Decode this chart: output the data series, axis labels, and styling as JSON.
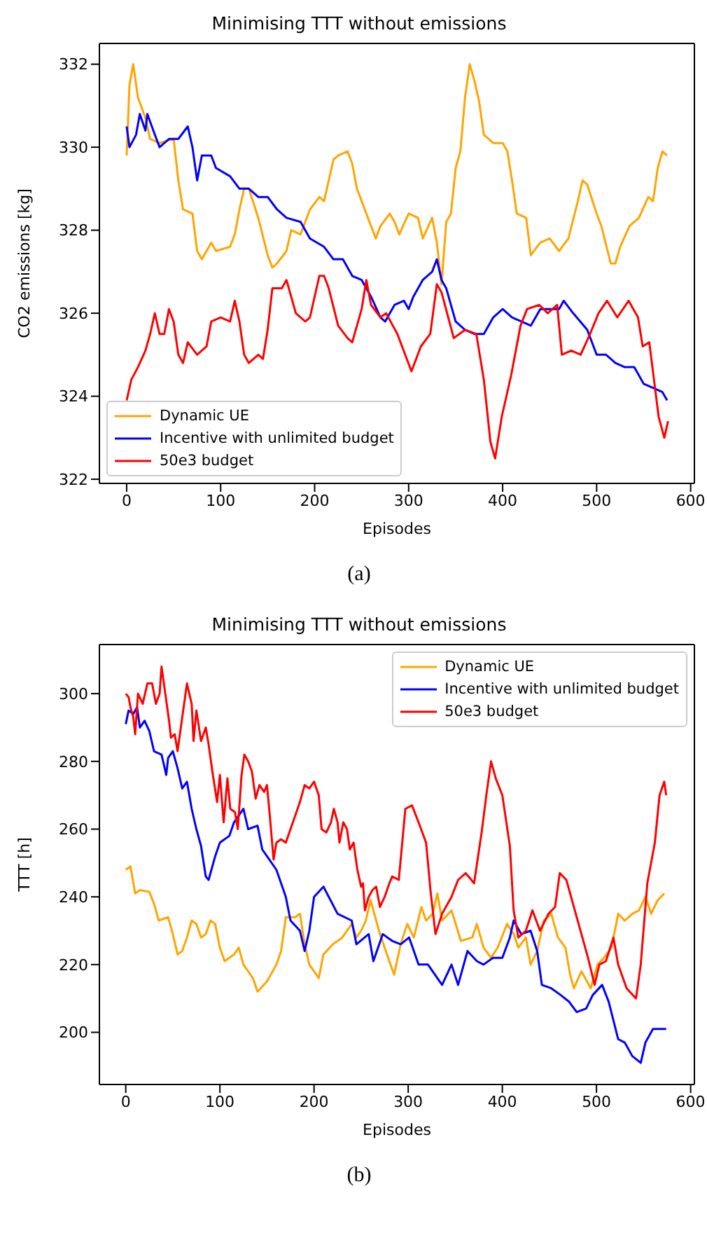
{
  "chart_data": [
    {
      "type": "line",
      "title": "Minimising TTT without emissions",
      "xlabel": "Episodes",
      "ylabel": "CO2 emissions [kg]",
      "xlim": [
        -29,
        604
      ],
      "xticks": [
        0,
        100,
        200,
        300,
        400,
        500,
        600
      ],
      "ylim": [
        321.9,
        332.5
      ],
      "yticks": [
        322,
        324,
        326,
        328,
        330,
        332
      ],
      "legend": "bottom left",
      "marker": "none",
      "line_style": "solid",
      "annotations": [
        "(a)"
      ],
      "series": [
        {
          "name": "Dynamic UE",
          "color": "#ffa500",
          "x": [
            0,
            3,
            7,
            12,
            20,
            25,
            35,
            50,
            55,
            60,
            70,
            75,
            80,
            90,
            95,
            110,
            115,
            120,
            125,
            130,
            140,
            150,
            155,
            160,
            170,
            175,
            185,
            195,
            205,
            210,
            220,
            225,
            235,
            240,
            245,
            255,
            265,
            270,
            280,
            285,
            290,
            300,
            310,
            315,
            325,
            330,
            335,
            340,
            345,
            350,
            355,
            360,
            365,
            370,
            375,
            380,
            390,
            400,
            405,
            410,
            415,
            425,
            430,
            440,
            450,
            460,
            470,
            480,
            485,
            490,
            500,
            505,
            515,
            520,
            525,
            535,
            545,
            555,
            560,
            565,
            570,
            575
          ],
          "values": [
            329.8,
            331.5,
            332,
            331.2,
            330.7,
            330.2,
            330.1,
            330.2,
            329.2,
            328.5,
            328.4,
            327.5,
            327.3,
            327.7,
            327.5,
            327.6,
            327.9,
            328.5,
            329,
            329,
            328.3,
            327.4,
            327.1,
            327.2,
            327.5,
            328,
            327.9,
            328.5,
            328.8,
            328.7,
            329.7,
            329.8,
            329.9,
            329.6,
            329,
            328.4,
            327.8,
            328.1,
            328.4,
            328.2,
            327.9,
            328.4,
            328.3,
            327.8,
            328.3,
            327.7,
            326.7,
            328.2,
            328.4,
            329.5,
            329.9,
            331.2,
            332,
            331.6,
            331.1,
            330.3,
            330.1,
            330.1,
            329.9,
            329.2,
            328.4,
            328.3,
            327.4,
            327.7,
            327.8,
            327.5,
            327.8,
            328.7,
            329.2,
            329.1,
            328.4,
            328.1,
            327.2,
            327.2,
            327.6,
            328.1,
            328.3,
            328.8,
            328.7,
            329.5,
            329.9,
            329.8
          ]
        },
        {
          "name": "Incentive with unlimited budget",
          "color": "#0000ff",
          "x": [
            0,
            3,
            10,
            14,
            20,
            22,
            30,
            35,
            45,
            55,
            65,
            70,
            75,
            80,
            90,
            95,
            110,
            120,
            130,
            140,
            150,
            160,
            170,
            185,
            195,
            210,
            220,
            230,
            240,
            250,
            260,
            270,
            275,
            285,
            295,
            300,
            305,
            315,
            325,
            330,
            335,
            340,
            350,
            360,
            370,
            380,
            390,
            400,
            410,
            420,
            430,
            440,
            460,
            465,
            475,
            490,
            500,
            510,
            520,
            530,
            540,
            550,
            560,
            570,
            575
          ],
          "values": [
            330.5,
            330,
            330.3,
            330.8,
            330.4,
            330.8,
            330.3,
            330,
            330.2,
            330.2,
            330.5,
            330,
            329.2,
            329.8,
            329.8,
            329.5,
            329.3,
            329,
            329,
            328.8,
            328.8,
            328.5,
            328.3,
            328.2,
            327.8,
            327.6,
            327.3,
            327.3,
            326.9,
            326.8,
            326.4,
            325.9,
            325.8,
            326.2,
            326.3,
            326.1,
            326.4,
            326.8,
            327,
            327.3,
            326.8,
            326.6,
            325.8,
            325.6,
            325.5,
            325.5,
            325.9,
            326.1,
            325.9,
            325.8,
            325.7,
            326.1,
            326.1,
            326.3,
            326,
            325.6,
            325,
            325,
            324.8,
            324.7,
            324.7,
            324.3,
            324.2,
            324.1,
            323.9
          ]
        },
        {
          "name": "50e3 budget",
          "color": "#ff0000",
          "x": [
            0,
            5,
            12,
            20,
            25,
            30,
            35,
            40,
            45,
            50,
            55,
            60,
            65,
            75,
            85,
            90,
            100,
            110,
            115,
            120,
            125,
            130,
            140,
            145,
            150,
            155,
            165,
            170,
            180,
            190,
            195,
            205,
            210,
            215,
            225,
            235,
            240,
            250,
            255,
            260,
            270,
            276,
            288,
            303,
            313,
            323,
            330,
            335,
            348,
            360,
            372,
            380,
            387,
            392,
            399,
            409,
            419,
            426,
            439,
            448,
            458,
            463,
            473,
            483,
            493,
            502,
            511,
            522,
            534,
            544,
            549,
            556,
            561,
            566,
            572,
            576
          ],
          "values": [
            323.9,
            324.4,
            324.7,
            325.1,
            325.5,
            326,
            325.5,
            325.5,
            326.1,
            325.8,
            325,
            324.8,
            325.3,
            325,
            325.2,
            325.8,
            325.9,
            325.8,
            326.3,
            325.8,
            325,
            324.8,
            325,
            324.9,
            325.6,
            326.6,
            326.6,
            326.8,
            326,
            325.8,
            325.9,
            326.9,
            326.9,
            326.6,
            325.7,
            325.4,
            325.3,
            326.1,
            326.8,
            326.2,
            325.9,
            326,
            325.5,
            324.6,
            325.2,
            325.5,
            326.7,
            326.5,
            325.4,
            325.6,
            325.5,
            324.4,
            322.9,
            322.5,
            323.5,
            324.5,
            325.7,
            326.1,
            326.2,
            326,
            326.2,
            325,
            325.1,
            325,
            325.5,
            326,
            326.3,
            325.9,
            326.3,
            325.9,
            325.2,
            325.3,
            324.4,
            323.5,
            323,
            323.4
          ]
        }
      ]
    },
    {
      "type": "line",
      "title": "Minimising TTT without emissions",
      "xlabel": "Episodes",
      "ylabel": "TTT [h]",
      "xlim": [
        -28,
        604
      ],
      "xticks": [
        0,
        100,
        200,
        300,
        400,
        500,
        600
      ],
      "ylim": [
        184.6,
        314.5
      ],
      "yticks": [
        200,
        220,
        240,
        260,
        280,
        300
      ],
      "legend": "top right",
      "marker": "none",
      "line_style": "solid",
      "annotations": [
        "(b)"
      ],
      "series": [
        {
          "name": "Dynamic UE",
          "color": "#ffa500",
          "x": [
            0,
            5,
            10,
            15,
            25,
            30,
            35,
            45,
            50,
            55,
            60,
            65,
            70,
            75,
            80,
            85,
            90,
            95,
            100,
            105,
            115,
            120,
            125,
            135,
            140,
            150,
            160,
            165,
            170,
            180,
            185,
            190,
            195,
            205,
            210,
            220,
            230,
            240,
            245,
            250,
            255,
            260,
            265,
            270,
            275,
            285,
            292,
            299,
            306,
            314,
            319,
            326,
            331,
            336,
            346,
            356,
            368,
            373,
            380,
            388,
            395,
            405,
            412,
            417,
            425,
            430,
            437,
            444,
            452,
            459,
            467,
            472,
            476,
            484,
            494,
            501,
            508,
            516,
            523,
            530,
            538,
            545,
            552,
            558,
            565,
            572
          ],
          "values": [
            248,
            249,
            241,
            242,
            241.5,
            238,
            233,
            234,
            229,
            223,
            224,
            228,
            233,
            232,
            228,
            229,
            233,
            232,
            225,
            221,
            223,
            225,
            220,
            216,
            212,
            215,
            220,
            224,
            234,
            234,
            235,
            226,
            220,
            216,
            223,
            226,
            228,
            232,
            228,
            230,
            233,
            239,
            234,
            229,
            225,
            217,
            226,
            232,
            228,
            237,
            233,
            235,
            241,
            233,
            236,
            227,
            228,
            232,
            225,
            222,
            225,
            232,
            229,
            225,
            228,
            220,
            224,
            233,
            235,
            228,
            225,
            217,
            213,
            218,
            213,
            220,
            222,
            225,
            235,
            233,
            235,
            236,
            240,
            235,
            239,
            241
          ]
        },
        {
          "name": "Incentive with unlimited budget",
          "color": "#0000ff",
          "x": [
            0,
            3,
            8,
            12,
            15,
            20,
            25,
            30,
            38,
            43,
            45,
            50,
            55,
            60,
            65,
            70,
            75,
            80,
            85,
            88,
            95,
            100,
            110,
            115,
            125,
            130,
            140,
            145,
            150,
            160,
            170,
            175,
            185,
            190,
            195,
            200,
            210,
            225,
            240,
            245,
            258,
            263,
            273,
            283,
            292,
            301,
            311,
            321,
            336,
            346,
            353,
            363,
            373,
            380,
            390,
            400,
            408,
            412,
            420,
            430,
            437,
            442,
            452,
            462,
            471,
            479,
            489,
            496,
            506,
            513,
            523,
            530,
            538,
            547,
            552,
            560,
            567,
            574
          ],
          "values": [
            291,
            295,
            294,
            296,
            290,
            292,
            289,
            283,
            282,
            276,
            281,
            283,
            278,
            272,
            274,
            266,
            260,
            255,
            246,
            245,
            252,
            256,
            258,
            262,
            266,
            260,
            261,
            254,
            252,
            248,
            240,
            233,
            230,
            224,
            230,
            240,
            243,
            235,
            233,
            226,
            229,
            221,
            229,
            227,
            226,
            228,
            220,
            220,
            214,
            220,
            214,
            224,
            221,
            220,
            222,
            222,
            228,
            233,
            229,
            230,
            224,
            214,
            213,
            211,
            209,
            206,
            207,
            211,
            214,
            209,
            198,
            197,
            193,
            191,
            197,
            201,
            201,
            201
          ]
        },
        {
          "name": "50e3 budget",
          "color": "#ff0000",
          "x": [
            0,
            3,
            5,
            8,
            10,
            13,
            18,
            23,
            28,
            32,
            36,
            38,
            42,
            46,
            48,
            52,
            55,
            58,
            62,
            65,
            70,
            72,
            75,
            80,
            85,
            88,
            92,
            97,
            100,
            104,
            108,
            111,
            116,
            119,
            123,
            126,
            130,
            134,
            138,
            142,
            147,
            150,
            153,
            157,
            160,
            165,
            170,
            175,
            180,
            185,
            190,
            195,
            200,
            205,
            208,
            213,
            218,
            221,
            225,
            227,
            231,
            235,
            238,
            242,
            246,
            250,
            252,
            254,
            258,
            262,
            266,
            270,
            275,
            280,
            283,
            290,
            297,
            304,
            311,
            319,
            324,
            329,
            336,
            346,
            353,
            361,
            370,
            378,
            383,
            388,
            393,
            400,
            408,
            412,
            417,
            425,
            432,
            440,
            449,
            456,
            461,
            468,
            476,
            484,
            491,
            498,
            503,
            510,
            518,
            523,
            532,
            542,
            547,
            554,
            562,
            567,
            572,
            574
          ],
          "values": [
            300,
            299,
            296,
            293,
            288,
            300,
            297,
            303,
            303,
            297,
            300,
            308,
            300,
            292,
            287,
            288,
            283,
            289,
            297,
            303,
            297,
            286,
            295,
            286,
            290,
            285,
            277,
            268,
            276,
            262,
            275,
            266,
            265,
            260,
            276,
            282,
            280,
            277,
            269,
            273,
            271,
            273,
            264,
            251,
            256,
            257,
            256,
            260,
            264,
            268,
            273,
            272,
            274,
            270,
            260,
            259,
            262,
            266,
            262,
            256,
            262,
            260,
            254,
            256,
            248,
            243,
            244,
            236,
            240,
            242,
            243,
            237,
            240,
            244,
            246,
            245,
            266,
            267,
            262,
            256,
            241,
            229,
            235,
            240,
            245,
            247,
            244,
            259,
            270,
            280,
            275,
            270,
            255,
            236,
            228,
            230,
            236,
            230,
            235,
            237,
            247,
            245,
            237,
            229,
            222,
            214,
            220,
            221,
            228,
            220,
            213,
            210,
            220,
            244,
            256,
            270,
            274,
            270
          ]
        }
      ]
    }
  ]
}
